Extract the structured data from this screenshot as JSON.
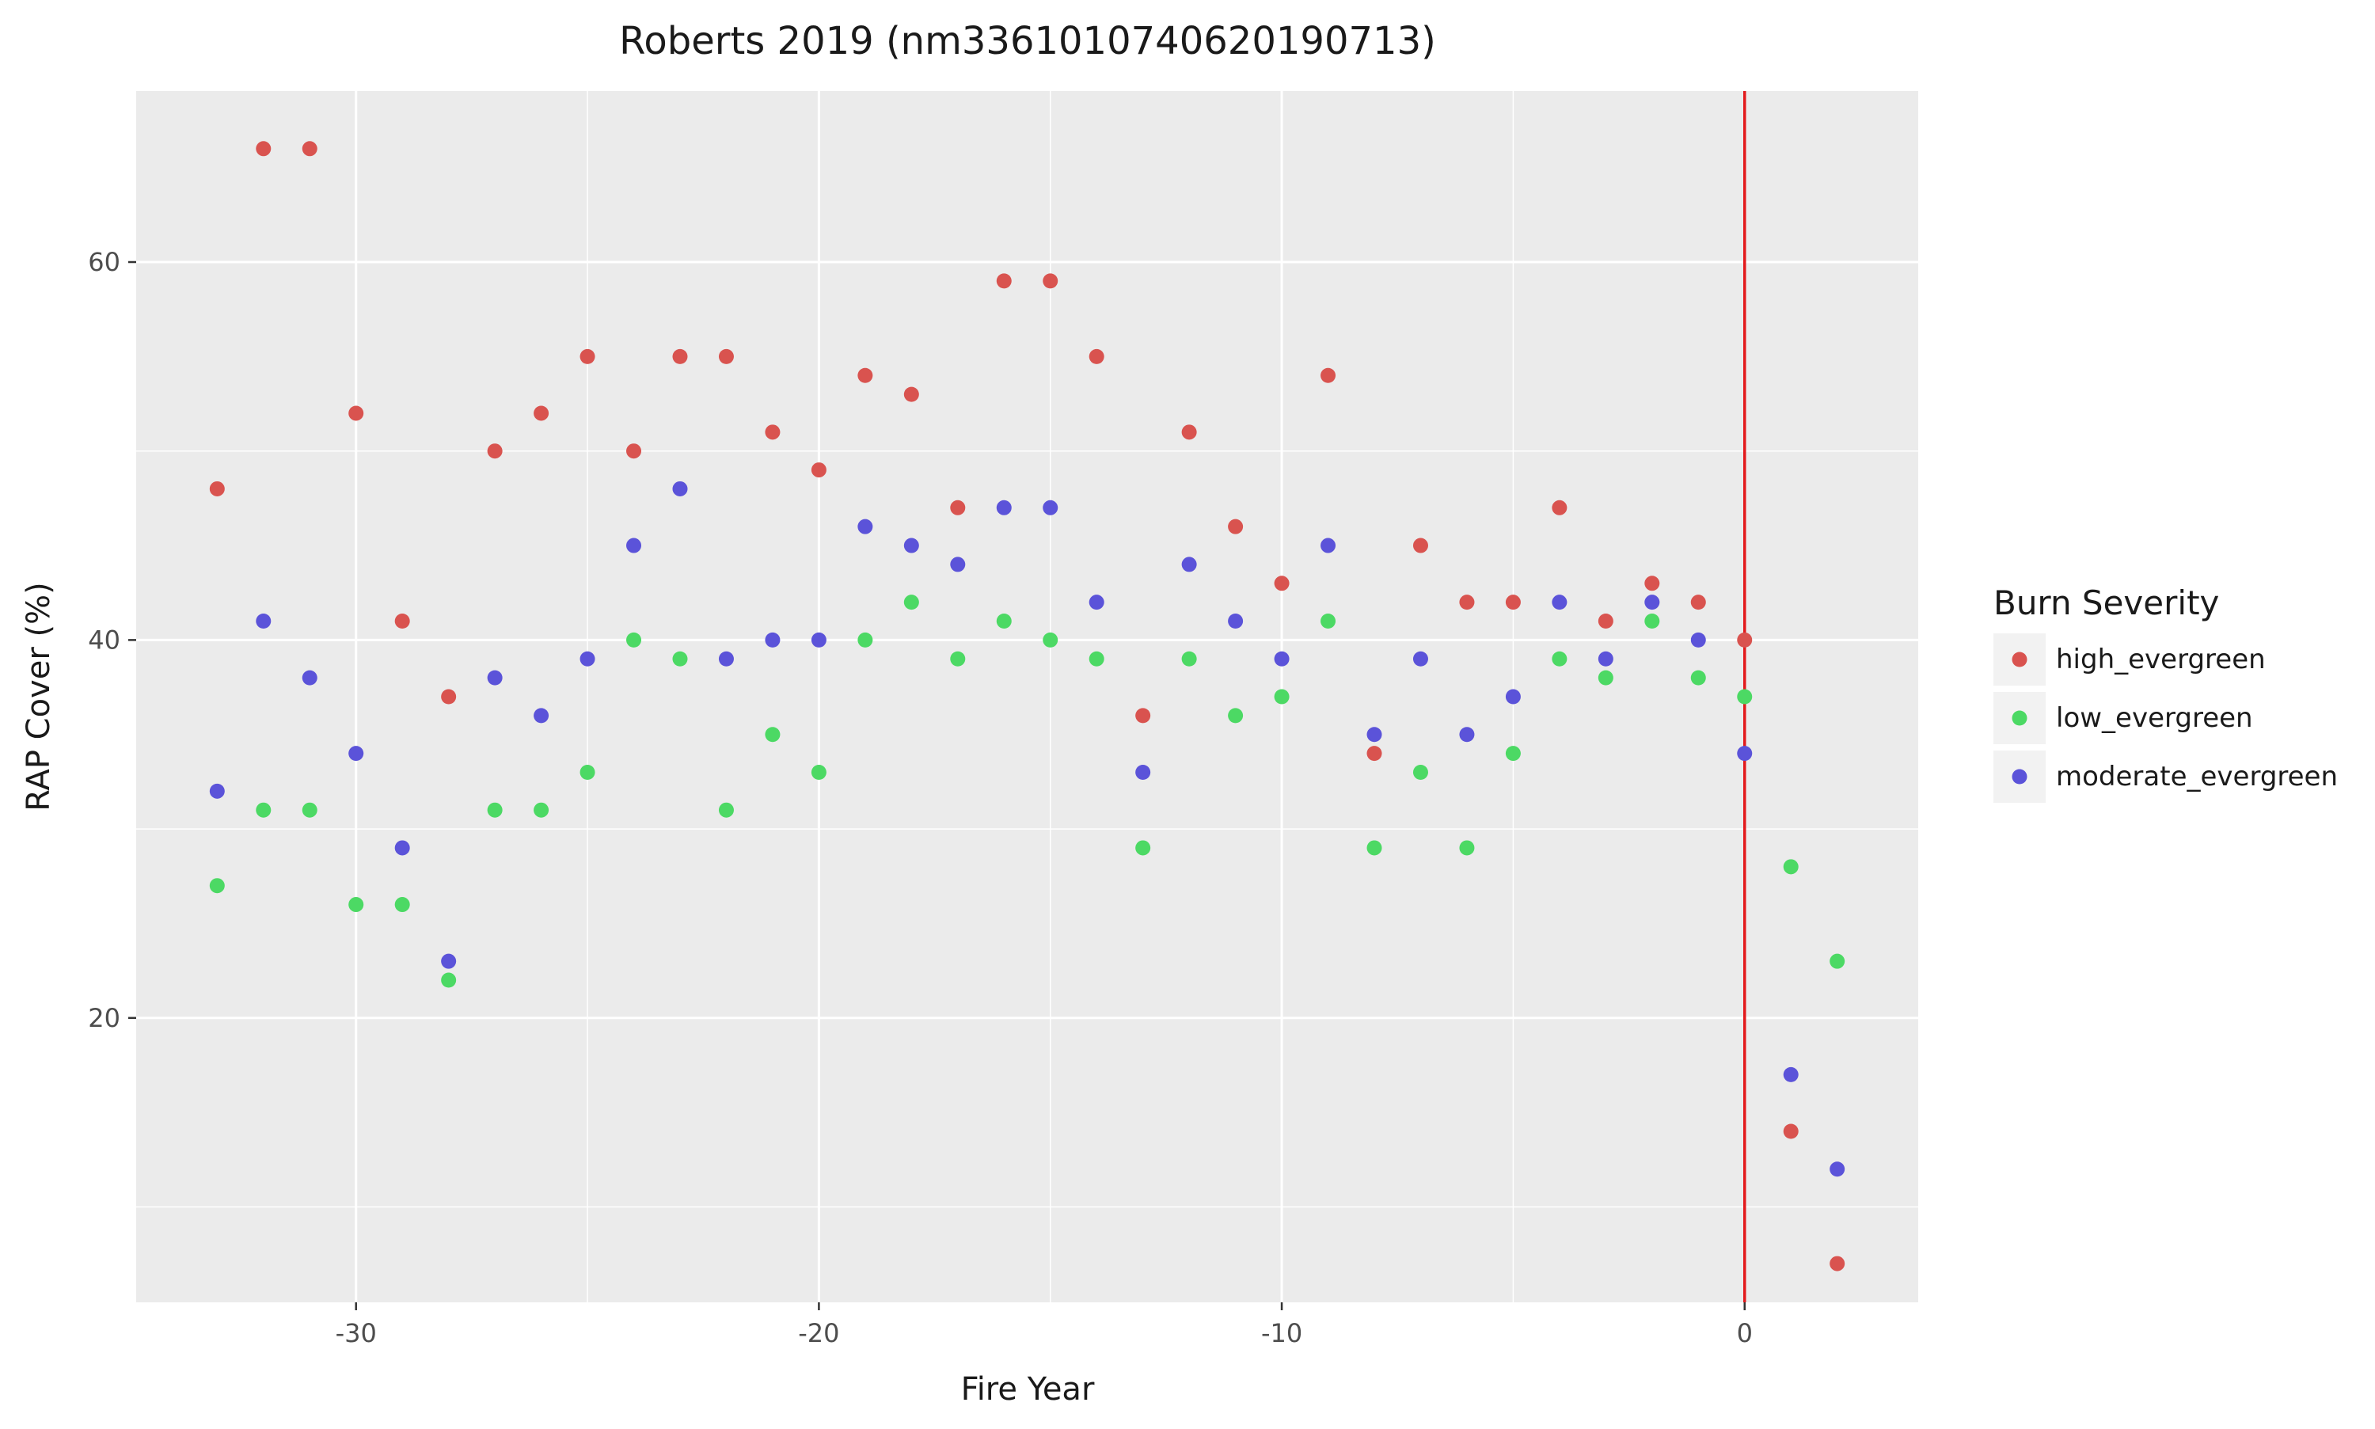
{
  "chart_data": {
    "type": "scatter",
    "title": "Roberts 2019 (nm3361010740620190713)",
    "xlabel": "Fire Year",
    "ylabel": "RAP Cover (%)",
    "xlim": [
      -34.75,
      3.75
    ],
    "ylim": [
      4.95,
      69.05
    ],
    "x_ticks": [
      -30,
      -20,
      -10,
      0
    ],
    "x_tick_labels": [
      "-30",
      "-20",
      "-10",
      "0"
    ],
    "y_ticks": [
      20,
      40,
      60
    ],
    "y_tick_labels": [
      "20",
      "40",
      "60"
    ],
    "x_minor_ticks": [
      -25,
      -15,
      -5
    ],
    "y_minor_ticks": [
      10,
      30,
      50
    ],
    "grid": true,
    "panel_background": "#ebebeb",
    "vline": {
      "x": 0,
      "color": "#e31a1c"
    },
    "legend": {
      "title": "Burn Severity",
      "position": "right"
    },
    "series": [
      {
        "name": "high_evergreen",
        "color": "#d9534f",
        "points": [
          [
            -33,
            48
          ],
          [
            -32,
            66
          ],
          [
            -31,
            66
          ],
          [
            -30,
            52
          ],
          [
            -29,
            41
          ],
          [
            -28,
            37
          ],
          [
            -27,
            50
          ],
          [
            -26,
            52
          ],
          [
            -25,
            55
          ],
          [
            -24,
            50
          ],
          [
            -23,
            55
          ],
          [
            -22,
            55
          ],
          [
            -21,
            51
          ],
          [
            -20,
            49
          ],
          [
            -19,
            54
          ],
          [
            -18,
            53
          ],
          [
            -17,
            47
          ],
          [
            -16,
            59
          ],
          [
            -15,
            59
          ],
          [
            -14,
            55
          ],
          [
            -13,
            36
          ],
          [
            -12,
            51
          ],
          [
            -11,
            46
          ],
          [
            -10,
            43
          ],
          [
            -9,
            54
          ],
          [
            -8,
            34
          ],
          [
            -7,
            45
          ],
          [
            -6,
            42
          ],
          [
            -5,
            42
          ],
          [
            -4,
            47
          ],
          [
            -3,
            41
          ],
          [
            -2,
            43
          ],
          [
            -1,
            42
          ],
          [
            0,
            40
          ],
          [
            1,
            14
          ],
          [
            2,
            7
          ]
        ]
      },
      {
        "name": "low_evergreen",
        "color": "#4cd964",
        "points": [
          [
            -33,
            27
          ],
          [
            -32,
            31
          ],
          [
            -31,
            31
          ],
          [
            -30,
            26
          ],
          [
            -29,
            26
          ],
          [
            -28,
            22
          ],
          [
            -27,
            31
          ],
          [
            -26,
            31
          ],
          [
            -25,
            33
          ],
          [
            -24,
            40
          ],
          [
            -23,
            39
          ],
          [
            -22,
            31
          ],
          [
            -21,
            35
          ],
          [
            -20,
            33
          ],
          [
            -19,
            40
          ],
          [
            -18,
            42
          ],
          [
            -17,
            39
          ],
          [
            -16,
            41
          ],
          [
            -15,
            40
          ],
          [
            -14,
            39
          ],
          [
            -13,
            29
          ],
          [
            -12,
            39
          ],
          [
            -11,
            36
          ],
          [
            -10,
            37
          ],
          [
            -9,
            41
          ],
          [
            -8,
            29
          ],
          [
            -7,
            33
          ],
          [
            -6,
            29
          ],
          [
            -5,
            34
          ],
          [
            -4,
            39
          ],
          [
            -3,
            38
          ],
          [
            -2,
            41
          ],
          [
            -1,
            38
          ],
          [
            0,
            37
          ],
          [
            1,
            28
          ],
          [
            2,
            23
          ]
        ]
      },
      {
        "name": "moderate_evergreen",
        "color": "#5b53d9",
        "points": [
          [
            -33,
            32
          ],
          [
            -32,
            41
          ],
          [
            -31,
            38
          ],
          [
            -30,
            34
          ],
          [
            -29,
            29
          ],
          [
            -28,
            23
          ],
          [
            -27,
            38
          ],
          [
            -26,
            36
          ],
          [
            -25,
            39
          ],
          [
            -24,
            45
          ],
          [
            -23,
            48
          ],
          [
            -22,
            39
          ],
          [
            -21,
            40
          ],
          [
            -20,
            40
          ],
          [
            -19,
            46
          ],
          [
            -18,
            45
          ],
          [
            -17,
            44
          ],
          [
            -16,
            47
          ],
          [
            -15,
            47
          ],
          [
            -14,
            42
          ],
          [
            -13,
            33
          ],
          [
            -12,
            44
          ],
          [
            -11,
            41
          ],
          [
            -10,
            39
          ],
          [
            -9,
            45
          ],
          [
            -8,
            35
          ],
          [
            -7,
            39
          ],
          [
            -6,
            35
          ],
          [
            -5,
            37
          ],
          [
            -4,
            42
          ],
          [
            -3,
            39
          ],
          [
            -2,
            42
          ],
          [
            -1,
            40
          ],
          [
            0,
            34
          ],
          [
            1,
            17
          ],
          [
            2,
            12
          ]
        ]
      }
    ]
  }
}
